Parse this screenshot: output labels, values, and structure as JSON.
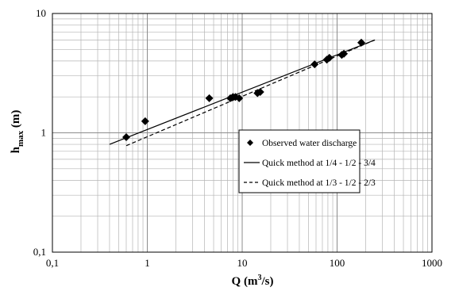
{
  "chart_data": {
    "type": "scatter",
    "x_scale": "log",
    "y_scale": "log",
    "xlim": [
      0.1,
      1000
    ],
    "ylim": [
      0.1,
      10
    ],
    "grid": true,
    "legend_position": "right",
    "x_ticks": [
      "0,1",
      "1",
      "10",
      "100",
      "1000"
    ],
    "y_ticks": [
      "0,1",
      "1",
      "10"
    ],
    "xlabel_main": "Q (m",
    "xlabel_sup": "3",
    "xlabel_end": "/s)",
    "ylabel_main": "h",
    "ylabel_sub": "max",
    "ylabel_end": " (m)",
    "series": [
      {
        "name": "Observed water discharge",
        "kind": "points",
        "marker": "diamond",
        "color": "#000000",
        "x": [
          0.6,
          0.95,
          4.5,
          7.5,
          8.0,
          8.5,
          9.3,
          14.5,
          15.5,
          58,
          78,
          83,
          112,
          118,
          180
        ],
        "y": [
          0.92,
          1.25,
          1.95,
          1.95,
          2.0,
          2.0,
          1.95,
          2.15,
          2.2,
          3.75,
          4.1,
          4.25,
          4.5,
          4.6,
          5.7
        ]
      },
      {
        "name": "Quick method at 1/4 - 1/2 - 3/4",
        "kind": "line",
        "dash": "solid",
        "color": "#000000",
        "x": [
          0.4,
          250
        ],
        "y": [
          0.8,
          6.0
        ]
      },
      {
        "name": "Quick method at 1/3 - 1/2 - 2/3",
        "kind": "line",
        "dash": "dashed",
        "color": "#000000",
        "x": [
          0.6,
          250
        ],
        "y": [
          0.78,
          6.0
        ]
      }
    ]
  }
}
